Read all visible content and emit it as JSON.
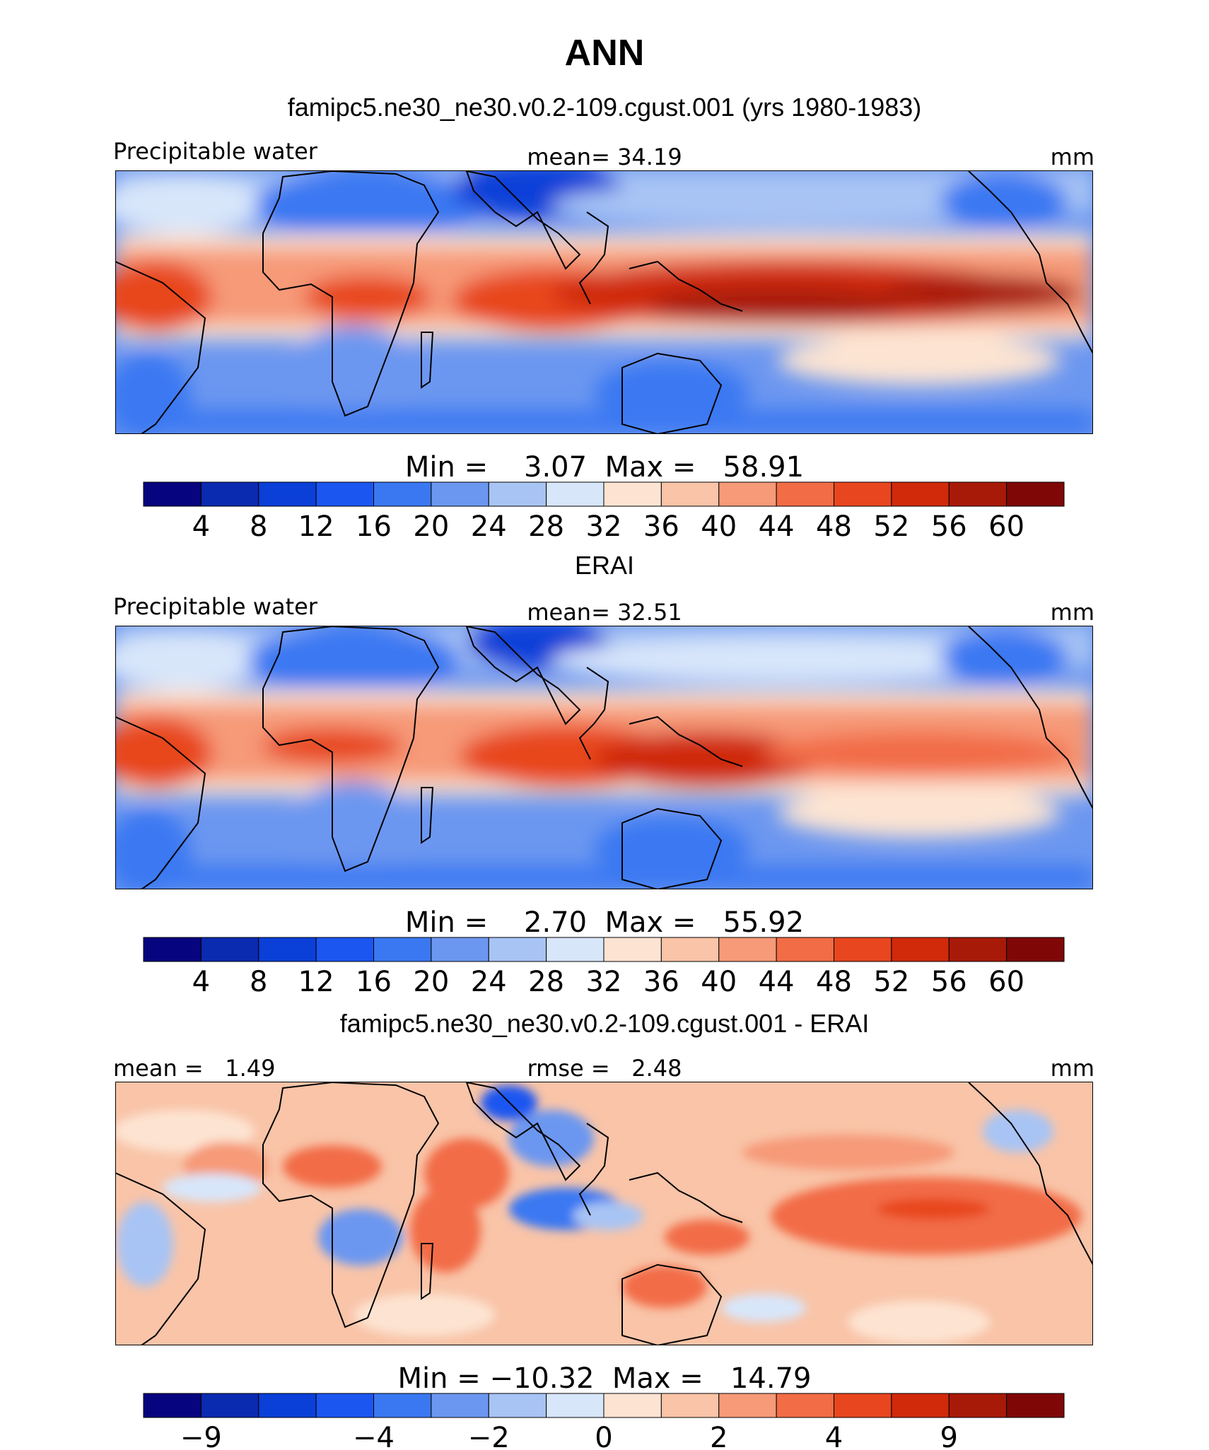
{
  "figure": {
    "title": "ANN"
  },
  "colorbar_colors": [
    "#07047f",
    "#0a2ab0",
    "#0a3fd8",
    "#1c56f0",
    "#3a78f2",
    "#6c97f0",
    "#a8c4f4",
    "#d8e6fa",
    "#fde4d2",
    "#f9c4a8",
    "#f69a78",
    "#f26c46",
    "#e8461e",
    "#d02a0a",
    "#a81a08",
    "#7f0806"
  ],
  "chart_data": [
    {
      "type": "heatmap",
      "title": "famipc5.ne30_ne30.v0.2-109.cgust.001 (yrs 1980-1983)",
      "left_label": "Precipitable water",
      "center_label": "mean=  34.19",
      "right_label": "mm",
      "stats": "Min =    3.07  Max =   58.91",
      "min": 3.07,
      "max": 58.91,
      "mean": 34.19,
      "units": "mm",
      "colorbar_ticks": [
        "4",
        "8",
        "12",
        "16",
        "20",
        "24",
        "28",
        "32",
        "36",
        "40",
        "44",
        "48",
        "52",
        "56",
        "60"
      ]
    },
    {
      "type": "heatmap",
      "title": "ERAI",
      "left_label": "Precipitable water",
      "center_label": "mean=  32.51",
      "right_label": "mm",
      "stats": "Min =    2.70  Max =   55.92",
      "min": 2.7,
      "max": 55.92,
      "mean": 32.51,
      "units": "mm",
      "colorbar_ticks": [
        "4",
        "8",
        "12",
        "16",
        "20",
        "24",
        "28",
        "32",
        "36",
        "40",
        "44",
        "48",
        "52",
        "56",
        "60"
      ]
    },
    {
      "type": "heatmap",
      "title": "famipc5.ne30_ne30.v0.2-109.cgust.001 - ERAI",
      "left_label": "mean =   1.49",
      "center_label": "rmse =   2.48",
      "right_label": "mm",
      "stats": "Min = −10.32  Max =   14.79",
      "min": -10.32,
      "max": 14.79,
      "mean": 1.49,
      "rmse": 2.48,
      "units": "mm",
      "colorbar_ticks": [
        "−9",
        "−4",
        "−2",
        "0",
        "2",
        "4",
        "9"
      ],
      "colorbar_tick_boundaries": [
        1,
        4,
        6,
        8,
        10,
        12,
        14
      ]
    }
  ]
}
